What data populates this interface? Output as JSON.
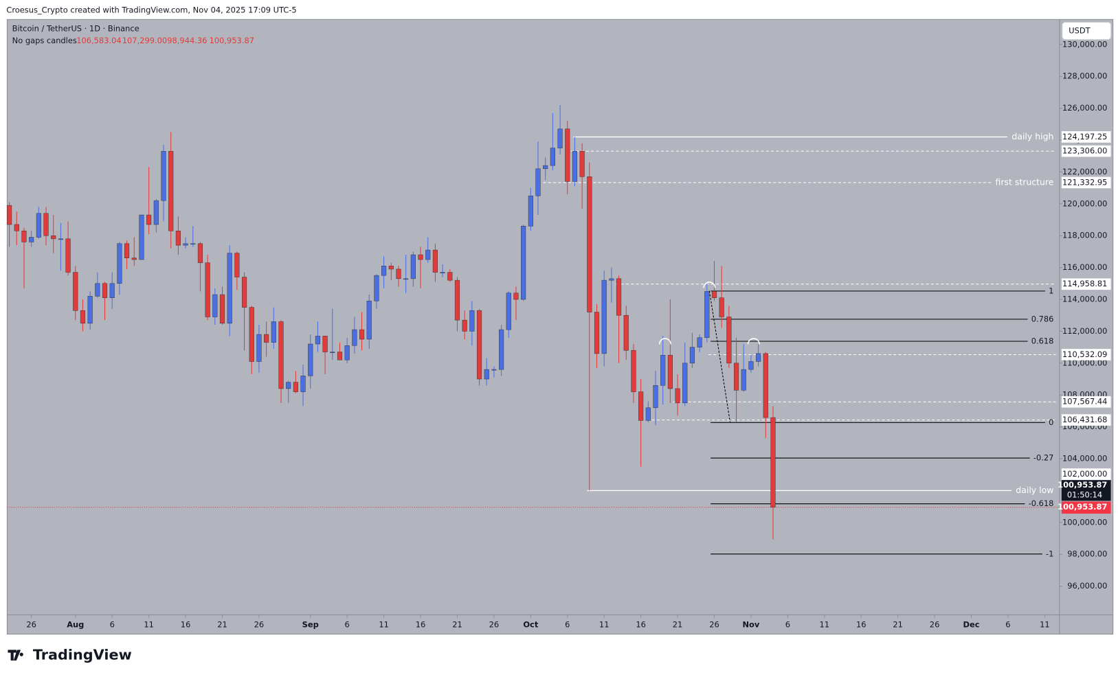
{
  "header": {
    "credit": "Croesus_Crypto created with TradingView.com, Nov 04, 2025 17:09 UTC-5",
    "brand": "TradingView"
  },
  "chart_data": {
    "type": "candlestick",
    "title": "Bitcoin / TetherUS · 1D · Binance",
    "subtitle": "No gaps candles",
    "legend_values": [
      "106,583.04",
      "107,299.00",
      "98,944.36",
      "100,953.87"
    ],
    "currency": "USDT",
    "countdown": "01:50:14",
    "up_color": "#4a6fe3",
    "down_color": "#e23b3b",
    "x": [
      0,
      1,
      2,
      3,
      4,
      5,
      6,
      7,
      8,
      9,
      10,
      11,
      12,
      13,
      14,
      15,
      16,
      17,
      18,
      19,
      20,
      21,
      22,
      23,
      24,
      25,
      26,
      27,
      28,
      29,
      30,
      31,
      32,
      33,
      34,
      35,
      36,
      37,
      38,
      39,
      40,
      41,
      42,
      43,
      44,
      45,
      46,
      47,
      48,
      49,
      50,
      51,
      52,
      53,
      54,
      55,
      56,
      57,
      58,
      59,
      60,
      61,
      62,
      63,
      64,
      65,
      66,
      67,
      68,
      69,
      70,
      71,
      72,
      73,
      74,
      75,
      76,
      77,
      78,
      79,
      80,
      81,
      82,
      83,
      84,
      85,
      86,
      87,
      88,
      89,
      90,
      91,
      92,
      93,
      94,
      95,
      96,
      97,
      98,
      99,
      100,
      101,
      102,
      103,
      104
    ],
    "open": [
      119900,
      118700,
      118300,
      117600,
      117900,
      119400,
      118000,
      117800,
      117800,
      115700,
      113300,
      112500,
      114200,
      115000,
      114100,
      115000,
      117500,
      116600,
      116500,
      119300,
      118700,
      120200,
      123300,
      118300,
      117400,
      117500,
      117500,
      116300,
      112900,
      114300,
      112500,
      116900,
      115400,
      113500,
      110100,
      111800,
      111300,
      112600,
      108400,
      108800,
      108200,
      109200,
      111200,
      111700,
      110700,
      110700,
      110200,
      111100,
      112100,
      111500,
      113900,
      115500,
      116100,
      115900,
      115300,
      115300,
      116800,
      116500,
      117100,
      115700,
      115700,
      115200,
      112700,
      112000,
      113300,
      109000,
      109600,
      109600,
      112100,
      114400,
      114000,
      118600,
      120500,
      122200,
      122400,
      123500,
      124700,
      121400,
      123300,
      121700,
      113200,
      110600,
      115200,
      115300,
      113000,
      110800,
      108200,
      106400,
      107200,
      108600,
      110500,
      108400,
      107500,
      110000,
      111000,
      111600,
      114500,
      114100,
      112900,
      110000,
      108300,
      109600,
      110100,
      110600,
      106583.04
    ],
    "high": [
      120100,
      119500,
      118500,
      118300,
      119800,
      119800,
      119300,
      118800,
      118900,
      116100,
      114000,
      114500,
      115700,
      115100,
      115700,
      117600,
      117700,
      117900,
      119300,
      122300,
      120300,
      123700,
      124500,
      119200,
      117900,
      118600,
      117600,
      116800,
      114700,
      114800,
      117400,
      117000,
      115700,
      113600,
      112400,
      112600,
      113500,
      112700,
      108900,
      109500,
      109900,
      111800,
      112600,
      111700,
      113400,
      111300,
      111600,
      112900,
      113200,
      114300,
      115600,
      116700,
      116300,
      116100,
      116800,
      117000,
      117300,
      117900,
      117500,
      116200,
      115900,
      115400,
      113300,
      113900,
      113400,
      110300,
      109800,
      112400,
      114500,
      114800,
      118700,
      121000,
      123900,
      122900,
      125700,
      126200,
      125200,
      124200,
      123800,
      122600,
      113700,
      115800,
      116000,
      115500,
      113600,
      111200,
      109000,
      107600,
      109500,
      111700,
      114000,
      109300,
      111300,
      111900,
      111800,
      115000,
      116400,
      116100,
      113600,
      111600,
      111200,
      110500,
      111200,
      110700,
      107299
    ],
    "low": [
      117300,
      117400,
      114700,
      117300,
      117800,
      117400,
      116900,
      115800,
      115500,
      112700,
      112000,
      112100,
      114100,
      112700,
      113400,
      114300,
      115900,
      116100,
      116500,
      118100,
      118200,
      118900,
      117200,
      116800,
      117200,
      117300,
      114500,
      112700,
      112400,
      112400,
      111700,
      114600,
      110800,
      109300,
      109400,
      110400,
      110900,
      107500,
      107500,
      108100,
      107300,
      108400,
      110700,
      109300,
      110200,
      110200,
      110000,
      110600,
      110800,
      110900,
      113400,
      114700,
      115200,
      114800,
      114400,
      114800,
      114700,
      116300,
      115100,
      115400,
      115100,
      112000,
      111500,
      111100,
      108600,
      108600,
      109100,
      109200,
      111600,
      112700,
      113900,
      118300,
      119300,
      121500,
      122100,
      123100,
      120600,
      121100,
      119700,
      102000,
      109700,
      109800,
      113800,
      110000,
      110200,
      107500,
      103500,
      106300,
      106100,
      107400,
      107500,
      106700,
      107300,
      109700,
      110700,
      111300,
      113900,
      112200,
      109700,
      106300,
      108200,
      109400,
      109800,
      105300,
      98944.36
    ],
    "close": [
      118700,
      118300,
      117600,
      117900,
      119400,
      118000,
      117800,
      117800,
      115700,
      113300,
      112500,
      114200,
      115000,
      114100,
      115000,
      117500,
      116600,
      116500,
      119300,
      118700,
      120200,
      123300,
      118300,
      117400,
      117500,
      117500,
      116300,
      112900,
      114300,
      112500,
      116900,
      115400,
      113500,
      110100,
      111800,
      111300,
      112600,
      108400,
      108800,
      108200,
      109200,
      111200,
      111700,
      110700,
      110700,
      110200,
      111100,
      112100,
      111500,
      113900,
      115500,
      116100,
      115900,
      115300,
      115300,
      116800,
      116500,
      117100,
      115700,
      115700,
      115200,
      112700,
      112000,
      113300,
      109000,
      109600,
      109600,
      112100,
      114400,
      114000,
      118600,
      120500,
      122200,
      122400,
      123500,
      124700,
      121400,
      123300,
      121700,
      113200,
      110600,
      115200,
      115300,
      113000,
      110800,
      108200,
      106400,
      107200,
      108600,
      110500,
      108400,
      107500,
      110000,
      111000,
      111600,
      114500,
      114100,
      112900,
      110000,
      108300,
      109600,
      110100,
      110600,
      106583.04,
      100953.87
    ],
    "xlim": [
      -0.3,
      143
    ],
    "xticks": [
      {
        "value": 3,
        "label": "26"
      },
      {
        "value": 9,
        "label": "Aug"
      },
      {
        "value": 14,
        "label": "6"
      },
      {
        "value": 19,
        "label": "11"
      },
      {
        "value": 24,
        "label": "16"
      },
      {
        "value": 29,
        "label": "21"
      },
      {
        "value": 34,
        "label": "26"
      },
      {
        "value": 41,
        "label": "Sep"
      },
      {
        "value": 46,
        "label": "6"
      },
      {
        "value": 51,
        "label": "11"
      },
      {
        "value": 56,
        "label": "16"
      },
      {
        "value": 61,
        "label": "21"
      },
      {
        "value": 66,
        "label": "26"
      },
      {
        "value": 71,
        "label": "Oct"
      },
      {
        "value": 76,
        "label": "6"
      },
      {
        "value": 81,
        "label": "11"
      },
      {
        "value": 86,
        "label": "16"
      },
      {
        "value": 91,
        "label": "21"
      },
      {
        "value": 96,
        "label": "26"
      },
      {
        "value": 101,
        "label": "Nov"
      },
      {
        "value": 106,
        "label": "6"
      },
      {
        "value": 111,
        "label": "11"
      },
      {
        "value": 116,
        "label": "16"
      },
      {
        "value": 121,
        "label": "21"
      },
      {
        "value": 126,
        "label": "26"
      },
      {
        "value": 131,
        "label": "Dec"
      },
      {
        "value": 136,
        "label": "6"
      },
      {
        "value": 141,
        "label": "11"
      }
    ],
    "ylim": [
      94200,
      131570
    ],
    "yticks": [
      {
        "value": 96000,
        "label": "96,000.00"
      },
      {
        "value": 98000,
        "label": "98,000.00"
      },
      {
        "value": 100000,
        "label": "100,000.00"
      },
      {
        "value": 104000,
        "label": "104,000.00"
      },
      {
        "value": 106000,
        "label": "106,000.00"
      },
      {
        "value": 108000,
        "label": "108,000.00"
      },
      {
        "value": 110000,
        "label": "110,000.00"
      },
      {
        "value": 112000,
        "label": "112,000.00"
      },
      {
        "value": 114000,
        "label": "114,000.00"
      },
      {
        "value": 116000,
        "label": "116,000.00"
      },
      {
        "value": 118000,
        "label": "118,000.00"
      },
      {
        "value": 120000,
        "label": "120,000.00"
      },
      {
        "value": 122000,
        "label": "122,000.00"
      },
      {
        "value": 124000,
        "label": "124,000.00"
      },
      {
        "value": 126000,
        "label": "126,000.00"
      },
      {
        "value": 128000,
        "label": "128,000.00"
      },
      {
        "value": 130000,
        "label": "130,000.00"
      }
    ],
    "levels": [
      {
        "name": "daily high",
        "value": 124197.25,
        "value_label": "124,197.25",
        "style": "solid"
      },
      {
        "value": 123306,
        "value_label": "123,306.00",
        "style": "dashed"
      },
      {
        "name": "first structure",
        "value": 121332.95,
        "value_label": "121,332.95",
        "style": "dashed"
      },
      {
        "value": 114958.81,
        "value_label": "114,958.81",
        "style": "dashed"
      },
      {
        "value": 110532.09,
        "value_label": "110,532.09",
        "style": "dashed"
      },
      {
        "value": 107567.44,
        "value_label": "107,567.44",
        "style": "dashed"
      },
      {
        "value": 106431.68,
        "value_label": "106,431.68",
        "style": "dashed"
      },
      {
        "name": "daily low",
        "value": 102000,
        "value_label": "102,000.00",
        "style": "solid"
      }
    ],
    "fib": {
      "top": 114523,
      "bottom": 106270,
      "ratios": [
        1,
        0.786,
        0.618,
        0,
        -0.27,
        -0.618,
        -1
      ]
    }
  }
}
